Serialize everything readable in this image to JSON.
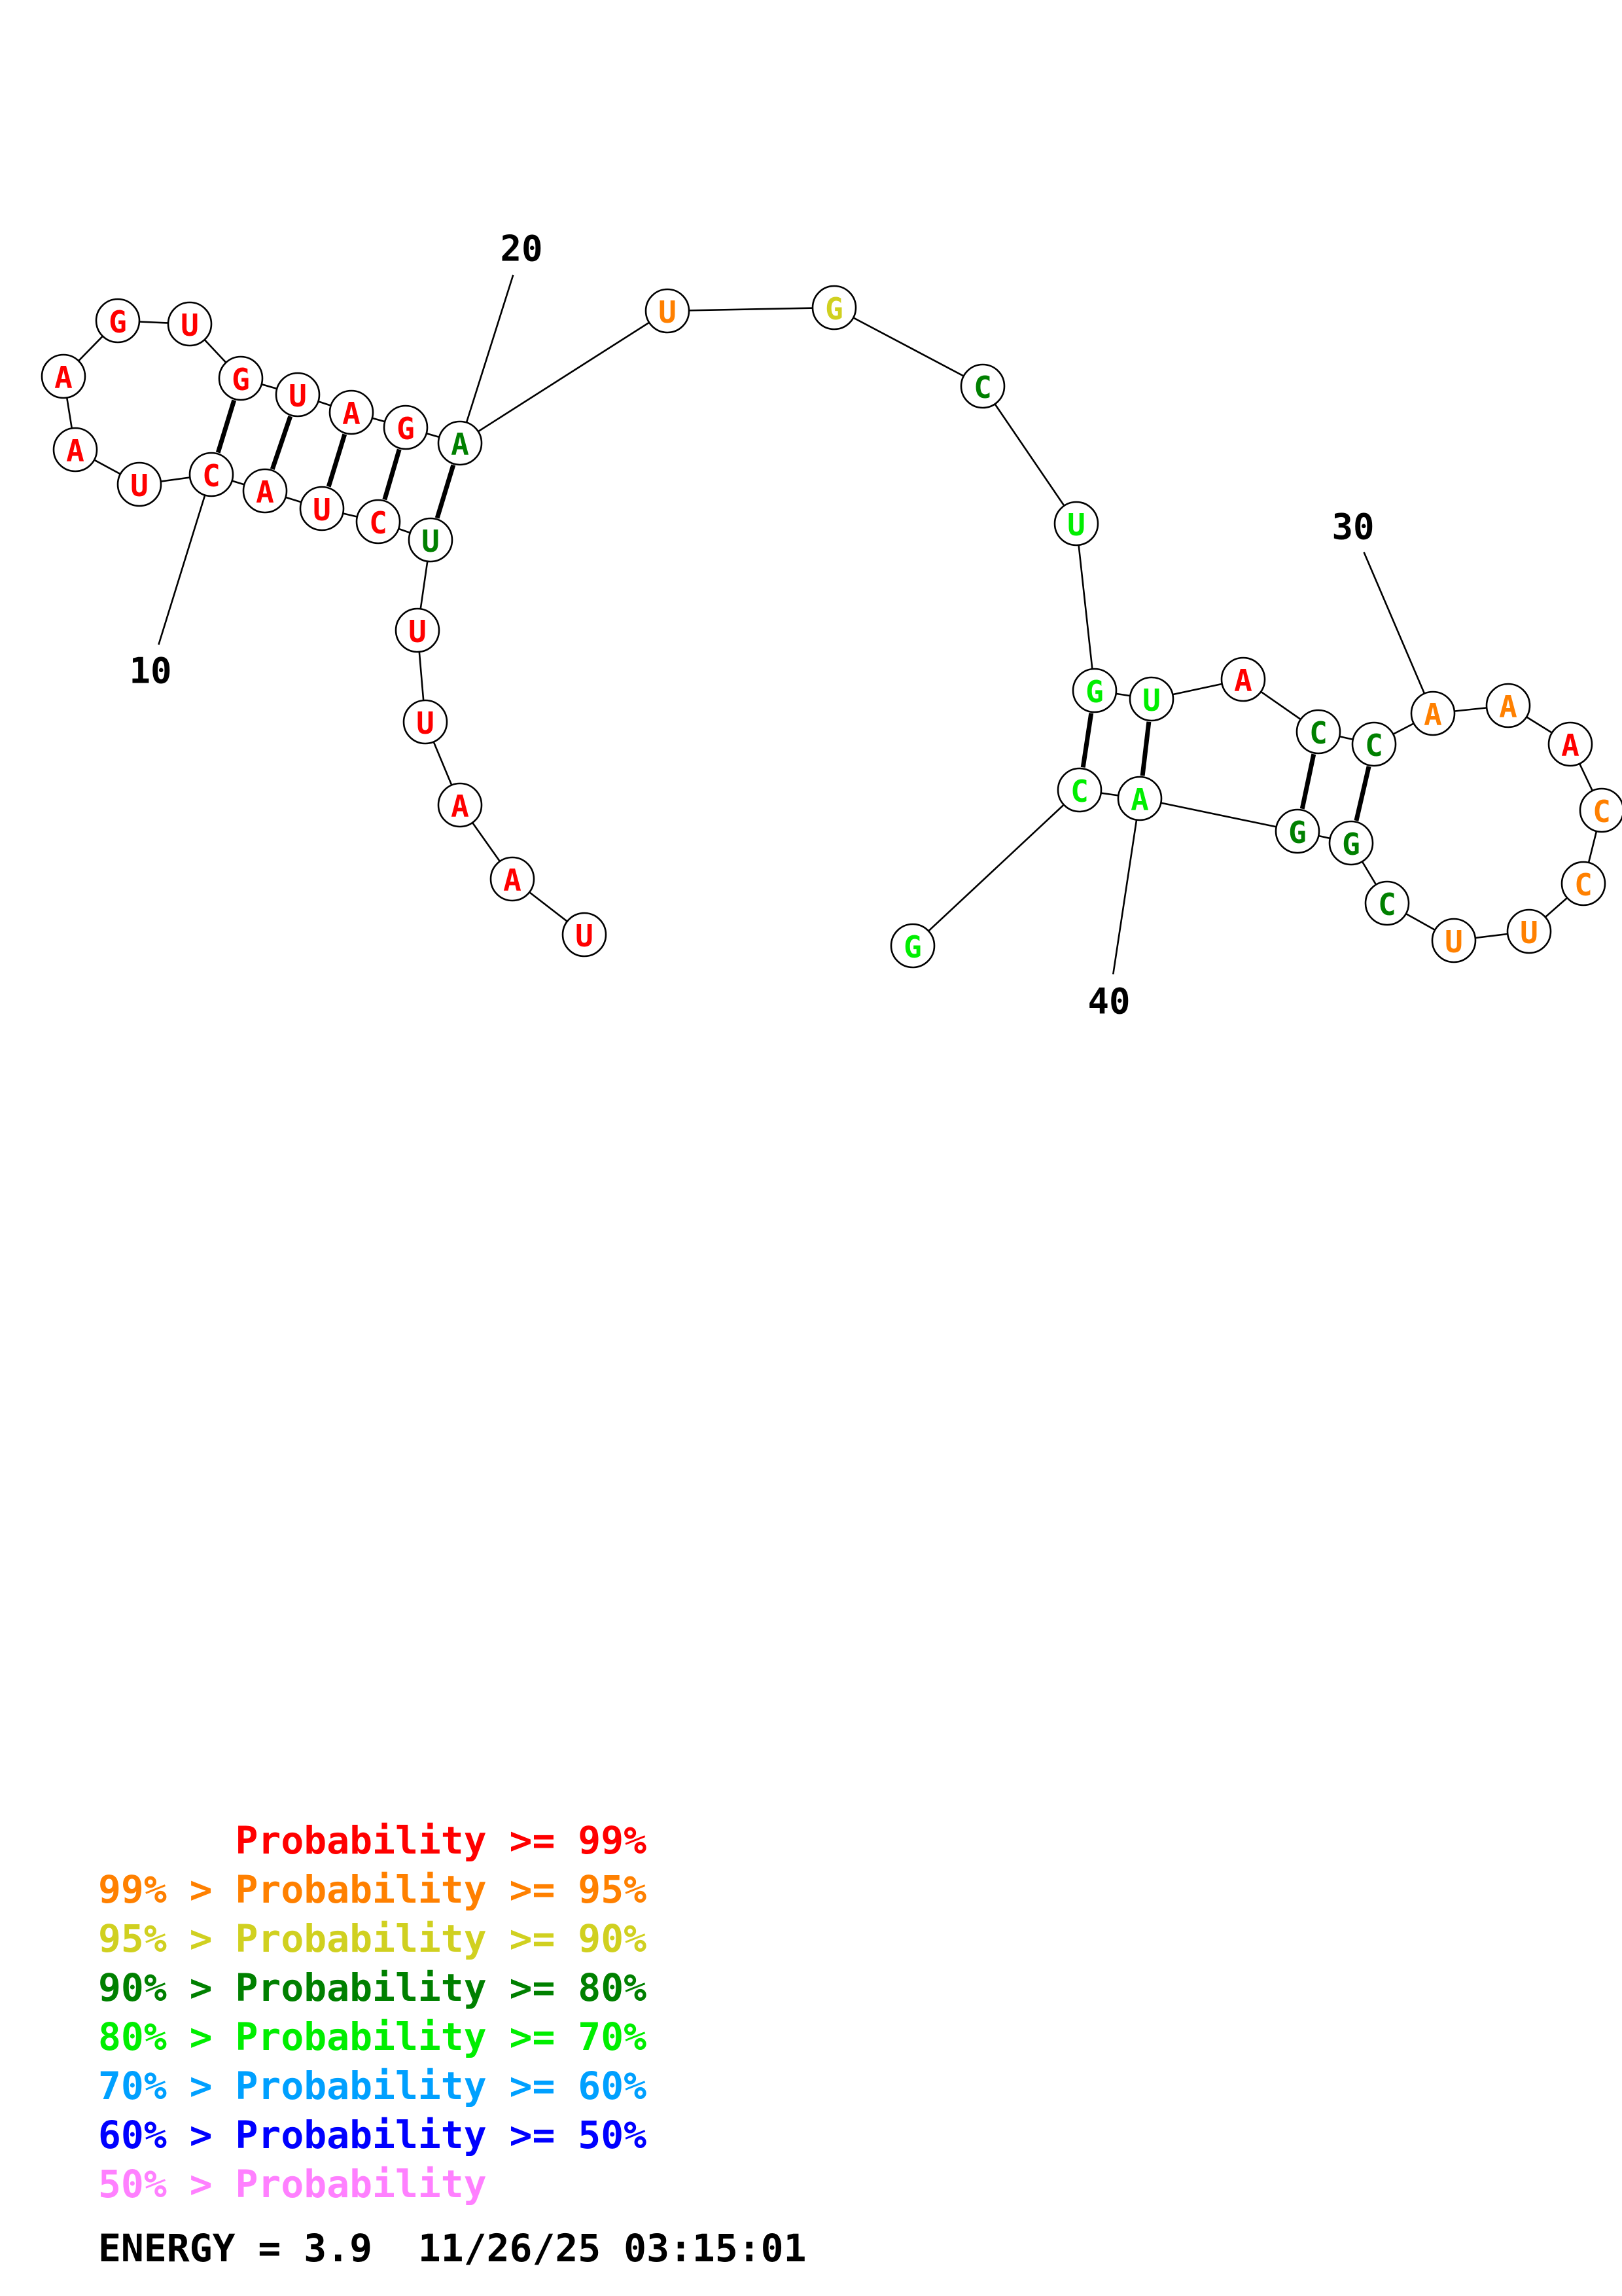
{
  "colors": {
    "p99": "#ff0000",
    "p95": "#ff8000",
    "p90": "#d0d020",
    "p80": "#008000",
    "p70": "#00ee00",
    "p60": "#00a0ff",
    "p50": "#0000ff",
    "plow": "#ff80ff"
  },
  "bases": [
    {
      "n": 1,
      "letter": "U",
      "color": "p99"
    },
    {
      "n": 2,
      "letter": "A",
      "color": "p99"
    },
    {
      "n": 3,
      "letter": "A",
      "color": "p99"
    },
    {
      "n": 4,
      "letter": "U",
      "color": "p99"
    },
    {
      "n": 5,
      "letter": "U",
      "color": "p99"
    },
    {
      "n": 6,
      "letter": "U",
      "color": "p80"
    },
    {
      "n": 7,
      "letter": "C",
      "color": "p99"
    },
    {
      "n": 8,
      "letter": "U",
      "color": "p99"
    },
    {
      "n": 9,
      "letter": "A",
      "color": "p99"
    },
    {
      "n": 10,
      "letter": "C",
      "color": "p99"
    },
    {
      "n": 11,
      "letter": "U",
      "color": "p99"
    },
    {
      "n": 12,
      "letter": "A",
      "color": "p99"
    },
    {
      "n": 13,
      "letter": "A",
      "color": "p99"
    },
    {
      "n": 14,
      "letter": "G",
      "color": "p99"
    },
    {
      "n": 15,
      "letter": "U",
      "color": "p99"
    },
    {
      "n": 16,
      "letter": "G",
      "color": "p99"
    },
    {
      "n": 17,
      "letter": "U",
      "color": "p99"
    },
    {
      "n": 18,
      "letter": "A",
      "color": "p99"
    },
    {
      "n": 19,
      "letter": "G",
      "color": "p99"
    },
    {
      "n": 20,
      "letter": "A",
      "color": "p80"
    },
    {
      "n": 21,
      "letter": "U",
      "color": "p95"
    },
    {
      "n": 22,
      "letter": "G",
      "color": "p90"
    },
    {
      "n": 23,
      "letter": "C",
      "color": "p80"
    },
    {
      "n": 24,
      "letter": "U",
      "color": "p70"
    },
    {
      "n": 25,
      "letter": "G",
      "color": "p70"
    },
    {
      "n": 26,
      "letter": "U",
      "color": "p70"
    },
    {
      "n": 27,
      "letter": "A",
      "color": "p99"
    },
    {
      "n": 28,
      "letter": "C",
      "color": "p80"
    },
    {
      "n": 29,
      "letter": "C",
      "color": "p80"
    },
    {
      "n": 30,
      "letter": "A",
      "color": "p95"
    },
    {
      "n": 31,
      "letter": "A",
      "color": "p95"
    },
    {
      "n": 32,
      "letter": "A",
      "color": "p99"
    },
    {
      "n": 33,
      "letter": "C",
      "color": "p95"
    },
    {
      "n": 34,
      "letter": "C",
      "color": "p95"
    },
    {
      "n": 35,
      "letter": "U",
      "color": "p95"
    },
    {
      "n": 36,
      "letter": "U",
      "color": "p95"
    },
    {
      "n": 37,
      "letter": "C",
      "color": "p80"
    },
    {
      "n": 38,
      "letter": "G",
      "color": "p80"
    },
    {
      "n": 39,
      "letter": "G",
      "color": "p80"
    },
    {
      "n": 40,
      "letter": "A",
      "color": "p70"
    },
    {
      "n": 41,
      "letter": "C",
      "color": "p70"
    },
    {
      "n": 42,
      "letter": "G",
      "color": "p70"
    }
  ],
  "pairs": [
    [
      10,
      16
    ],
    [
      9,
      17
    ],
    [
      8,
      18
    ],
    [
      7,
      19
    ],
    [
      6,
      20
    ],
    [
      25,
      41
    ],
    [
      26,
      40
    ],
    [
      28,
      39
    ],
    [
      29,
      38
    ]
  ],
  "position_labels": [
    {
      "text": "10",
      "base": 10
    },
    {
      "text": "20",
      "base": 20
    },
    {
      "text": "30",
      "base": 30
    },
    {
      "text": "40",
      "base": 40
    }
  ],
  "legend": [
    {
      "prefix": "",
      "body": "Probability >= 99%",
      "color": "p99"
    },
    {
      "prefix": "99% > ",
      "body": "Probability >= 95%",
      "color": "p95"
    },
    {
      "prefix": "95% > ",
      "body": "Probability >= 90%",
      "color": "p90"
    },
    {
      "prefix": "90% > ",
      "body": "Probability >= 80%",
      "color": "p80"
    },
    {
      "prefix": "80% > ",
      "body": "Probability >= 70%",
      "color": "p70"
    },
    {
      "prefix": "70% > ",
      "body": "Probability >= 60%",
      "color": "p60"
    },
    {
      "prefix": "60% > ",
      "body": "Probability >= 50%",
      "color": "p50"
    },
    {
      "prefix": "50% > ",
      "body": "Probability",
      "color": "plow"
    }
  ],
  "footer": {
    "energy": "ENERGY = 3.9",
    "timestamp": "11/26/25 03:15:01"
  }
}
